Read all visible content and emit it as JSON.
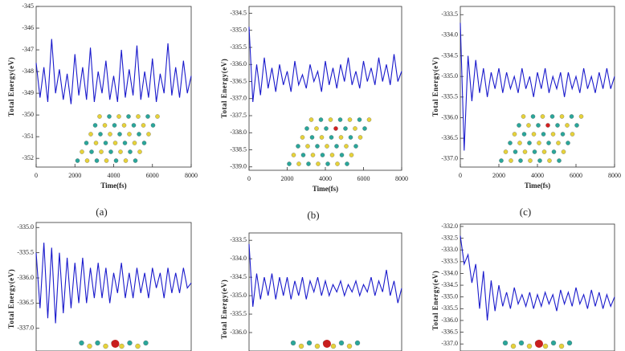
{
  "chart_data": [
    {
      "type": "line",
      "caption": "(a)",
      "xlabel": "Time(fs)",
      "ylabel": "Total Energy(eV)",
      "color": "#1a1acc",
      "x": [
        0,
        200,
        400,
        600,
        800,
        1000,
        1200,
        1400,
        1600,
        1800,
        2000,
        2200,
        2400,
        2600,
        2800,
        3000,
        3200,
        3400,
        3600,
        3800,
        4000,
        4200,
        4400,
        4600,
        4800,
        5000,
        5200,
        5400,
        5600,
        5800,
        6000,
        6200,
        6400,
        6600,
        6800,
        7000,
        7200,
        7400,
        7600,
        7800,
        8000
      ],
      "series": [
        {
          "values": [
            -347.6,
            -349.2,
            -347.8,
            -349.4,
            -346.5,
            -349.0,
            -347.9,
            -349.3,
            -348.1,
            -349.5,
            -347.2,
            -349.1,
            -347.8,
            -349.3,
            -346.9,
            -349.4,
            -348.0,
            -349.0,
            -347.5,
            -349.3,
            -348.2,
            -349.4,
            -347.0,
            -349.2,
            -347.9,
            -349.1,
            -346.8,
            -349.3,
            -348.0,
            -349.2,
            -347.4,
            -349.4,
            -348.1,
            -349.0,
            -346.7,
            -349.1,
            -347.8,
            -349.2,
            -347.5,
            -349.0,
            -348.2
          ]
        }
      ],
      "xlim": [
        0,
        8000
      ],
      "xticks": [
        0,
        2000,
        4000,
        6000,
        8000
      ],
      "ylim": [
        -352.4,
        -345
      ],
      "yticks": [
        -345,
        -346,
        -347,
        -348,
        -349,
        -350,
        -351,
        -352
      ]
    },
    {
      "type": "line",
      "caption": "(b)",
      "xlabel": "Time(fs)",
      "ylabel": "Total Energy(eV)",
      "color": "#1a1acc",
      "x": [
        0,
        200,
        400,
        600,
        800,
        1000,
        1200,
        1400,
        1600,
        1800,
        2000,
        2200,
        2400,
        2600,
        2800,
        3000,
        3200,
        3400,
        3600,
        3800,
        4000,
        4200,
        4400,
        4600,
        4800,
        5000,
        5200,
        5400,
        5600,
        5800,
        6000,
        6200,
        6400,
        6600,
        6800,
        7000,
        7200,
        7400,
        7600,
        7800,
        8000
      ],
      "series": [
        {
          "values": [
            -334.9,
            -337.1,
            -336.0,
            -336.9,
            -335.8,
            -336.7,
            -336.1,
            -336.8,
            -336.0,
            -336.6,
            -336.2,
            -336.8,
            -335.9,
            -336.6,
            -336.3,
            -336.7,
            -336.0,
            -336.5,
            -336.2,
            -336.8,
            -335.9,
            -336.6,
            -336.1,
            -336.7,
            -336.0,
            -336.5,
            -335.8,
            -336.6,
            -336.2,
            -336.7,
            -335.9,
            -336.5,
            -336.1,
            -336.6,
            -335.8,
            -336.5,
            -336.0,
            -336.6,
            -335.7,
            -336.5,
            -336.2
          ]
        }
      ],
      "xlim": [
        0,
        8000
      ],
      "xticks": [
        0,
        2000,
        4000,
        6000,
        8000
      ],
      "ylim": [
        -339.1,
        -334.3
      ],
      "yticks": [
        -334.5,
        {
          "value": -335,
          "label": "-335.0"
        },
        -335.5,
        {
          "value": -336,
          "label": "-336.0"
        },
        -336.5,
        {
          "value": -337,
          "label": "-337.0"
        },
        -337.5,
        {
          "value": -338,
          "label": "-338.0"
        },
        -338.5,
        {
          "value": -339,
          "label": "-339.0"
        }
      ]
    },
    {
      "type": "line",
      "caption": "(c)",
      "xlabel": "Time(fs)",
      "ylabel": "Total Energy(eV)",
      "color": "#1a1acc",
      "x": [
        0,
        200,
        400,
        600,
        800,
        1000,
        1200,
        1400,
        1600,
        1800,
        2000,
        2200,
        2400,
        2600,
        2800,
        3000,
        3200,
        3400,
        3600,
        3800,
        4000,
        4200,
        4400,
        4600,
        4800,
        5000,
        5200,
        5400,
        5600,
        5800,
        6000,
        6200,
        6400,
        6600,
        6800,
        7000,
        7200,
        7400,
        7600,
        7800,
        8000
      ],
      "series": [
        {
          "values": [
            -333.7,
            -336.8,
            -334.5,
            -335.6,
            -334.6,
            -335.4,
            -334.8,
            -335.5,
            -334.9,
            -335.3,
            -334.8,
            -335.4,
            -334.9,
            -335.3,
            -335.0,
            -335.4,
            -334.8,
            -335.3,
            -335.0,
            -335.5,
            -334.9,
            -335.3,
            -334.8,
            -335.4,
            -335.0,
            -335.3,
            -334.9,
            -335.5,
            -334.9,
            -335.3,
            -335.0,
            -335.4,
            -334.8,
            -335.3,
            -335.0,
            -335.4,
            -334.9,
            -335.3,
            -334.8,
            -335.3,
            -335.0
          ]
        }
      ],
      "xlim": [
        0,
        8000
      ],
      "xticks": [
        0,
        2000,
        4000,
        6000,
        8000
      ],
      "ylim": [
        -337.2,
        -333.3
      ],
      "yticks": [
        -333.5,
        {
          "value": -334,
          "label": "-334.0"
        },
        -334.5,
        {
          "value": -335,
          "label": "-335.0"
        },
        -335.5,
        {
          "value": -336,
          "label": "-336.0"
        },
        -336.5,
        {
          "value": -337,
          "label": "-337.0"
        }
      ]
    },
    {
      "type": "line",
      "ylabel": "Total Energy(eV)",
      "color": "#1a1acc",
      "x": [
        0,
        200,
        400,
        600,
        800,
        1000,
        1200,
        1400,
        1600,
        1800,
        2000,
        2200,
        2400,
        2600,
        2800,
        3000,
        3200,
        3400,
        3600,
        3800,
        4000,
        4200,
        4400,
        4600,
        4800,
        5000,
        5200,
        5400,
        5600,
        5800,
        6000,
        6200,
        6400,
        6600,
        6800,
        7000,
        7200,
        7400,
        7600,
        7800,
        8000
      ],
      "series": [
        {
          "values": [
            -335.5,
            -336.6,
            -335.3,
            -336.8,
            -335.4,
            -336.9,
            -335.5,
            -336.7,
            -335.6,
            -336.6,
            -335.7,
            -336.5,
            -335.6,
            -336.5,
            -335.8,
            -336.4,
            -335.7,
            -336.4,
            -335.8,
            -336.5,
            -335.9,
            -336.3,
            -335.7,
            -336.4,
            -335.9,
            -336.4,
            -335.8,
            -336.3,
            -335.9,
            -336.4,
            -335.8,
            -336.2,
            -335.9,
            -336.4,
            -335.8,
            -336.3,
            -335.9,
            -336.3,
            -335.8,
            -336.2,
            -336.1
          ]
        }
      ],
      "xlim": [
        0,
        8000
      ],
      "ylim": [
        -337.45,
        -334.9
      ],
      "yticks": [
        {
          "value": -335,
          "label": "-335.0"
        },
        -335.5,
        {
          "value": -336,
          "label": "-336.0"
        },
        -336.5,
        {
          "value": -337,
          "label": "-337.0"
        }
      ]
    },
    {
      "type": "line",
      "ylabel": "Total Energy(eV)",
      "color": "#1a1acc",
      "x": [
        0,
        200,
        400,
        600,
        800,
        1000,
        1200,
        1400,
        1600,
        1800,
        2000,
        2200,
        2400,
        2600,
        2800,
        3000,
        3200,
        3400,
        3600,
        3800,
        4000,
        4200,
        4400,
        4600,
        4800,
        5000,
        5200,
        5400,
        5600,
        5800,
        6000,
        6200,
        6400,
        6600,
        6800,
        7000,
        7200,
        7400,
        7600,
        7800,
        8000
      ],
      "series": [
        {
          "values": [
            -333.6,
            -335.3,
            -334.4,
            -335.1,
            -334.5,
            -335.0,
            -334.4,
            -335.1,
            -334.5,
            -335.0,
            -334.5,
            -335.1,
            -334.6,
            -335.0,
            -334.5,
            -335.1,
            -334.6,
            -334.9,
            -334.5,
            -335.0,
            -334.6,
            -335.0,
            -334.7,
            -334.9,
            -334.6,
            -335.0,
            -334.7,
            -334.9,
            -334.6,
            -335.0,
            -334.7,
            -334.9,
            -334.5,
            -335.0,
            -334.6,
            -334.9,
            -334.3,
            -335.0,
            -334.6,
            -335.2,
            -334.8
          ]
        }
      ],
      "xlim": [
        0,
        8000
      ],
      "ylim": [
        -336.5,
        -333.3
      ],
      "yticks": [
        -333.5,
        {
          "value": -334,
          "label": "-334.0"
        },
        -334.5,
        {
          "value": -335,
          "label": "-335.0"
        },
        -335.5,
        {
          "value": -336,
          "label": "-336.0"
        }
      ]
    },
    {
      "type": "line",
      "ylabel": "Total Energy(eV)",
      "color": "#1a1acc",
      "x": [
        0,
        200,
        400,
        600,
        800,
        1000,
        1200,
        1400,
        1600,
        1800,
        2000,
        2200,
        2400,
        2600,
        2800,
        3000,
        3200,
        3400,
        3600,
        3800,
        4000,
        4200,
        4400,
        4600,
        4800,
        5000,
        5200,
        5400,
        5600,
        5800,
        6000,
        6200,
        6400,
        6600,
        6800,
        7000,
        7200,
        7400,
        7600,
        7800,
        8000
      ],
      "series": [
        {
          "values": [
            -332.4,
            -333.6,
            -333.2,
            -334.4,
            -333.6,
            -335.5,
            -333.9,
            -336.0,
            -334.3,
            -335.6,
            -334.5,
            -335.4,
            -334.8,
            -335.5,
            -334.6,
            -335.3,
            -334.9,
            -335.4,
            -334.8,
            -335.5,
            -334.9,
            -335.4,
            -334.8,
            -335.3,
            -334.9,
            -335.6,
            -334.7,
            -335.3,
            -334.8,
            -335.4,
            -334.6,
            -335.3,
            -334.9,
            -335.5,
            -334.7,
            -335.4,
            -334.8,
            -335.5,
            -334.9,
            -335.4,
            -335.0
          ]
        }
      ],
      "xlim": [
        0,
        8000
      ],
      "ylim": [
        -337.3,
        -331.9
      ],
      "yticks": [
        {
          "value": -332,
          "label": "-332.0"
        },
        -332.5,
        {
          "value": -333,
          "label": "-333.0"
        },
        -333.5,
        {
          "value": -334,
          "label": "-334.0"
        },
        -334.5,
        {
          "value": -335,
          "label": "-335.0"
        },
        -335.5,
        {
          "value": -336,
          "label": "-336.0"
        },
        -336.5,
        {
          "value": -337,
          "label": "-337.0"
        }
      ]
    }
  ]
}
